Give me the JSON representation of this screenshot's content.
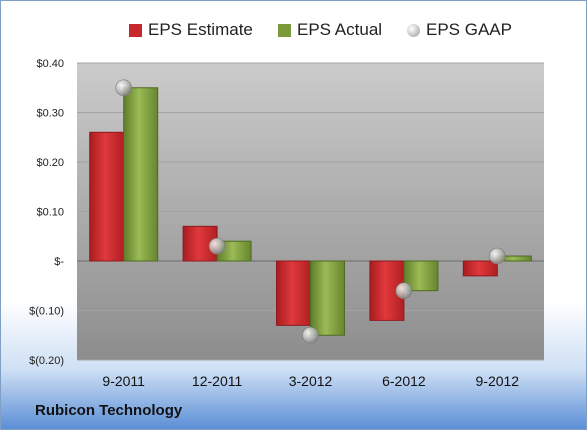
{
  "legend": {
    "estimate": "EPS Estimate",
    "actual": "EPS Actual",
    "gaap": "EPS GAAP"
  },
  "company": "Rubicon Technology",
  "colors": {
    "estimate": "#c8272b",
    "actual": "#7a9a3a",
    "gaap": "#b8b8b8",
    "plot_top": "#c9c9c9",
    "plot_bottom": "#8f8f8f"
  },
  "chart_data": {
    "type": "bar",
    "categories": [
      "9-2011",
      "12-2011",
      "3-2012",
      "6-2012",
      "9-2012"
    ],
    "series": [
      {
        "name": "EPS Estimate",
        "values": [
          0.26,
          0.07,
          -0.13,
          -0.12,
          -0.03
        ]
      },
      {
        "name": "EPS Actual",
        "values": [
          0.35,
          0.04,
          -0.15,
          -0.06,
          0.01
        ]
      },
      {
        "name": "EPS GAAP",
        "values": [
          0.35,
          0.03,
          -0.15,
          -0.06,
          0.01
        ]
      }
    ],
    "ylim": [
      -0.2,
      0.4
    ],
    "yticks": [
      0.4,
      0.3,
      0.2,
      0.1,
      0.0,
      -0.1,
      -0.2
    ],
    "ytick_labels": [
      "$0.40",
      "$0.30",
      "$0.20",
      "$0.10",
      "$-",
      "$(0.10)",
      "$(0.20)"
    ],
    "grid": true,
    "legend_position": "top"
  }
}
